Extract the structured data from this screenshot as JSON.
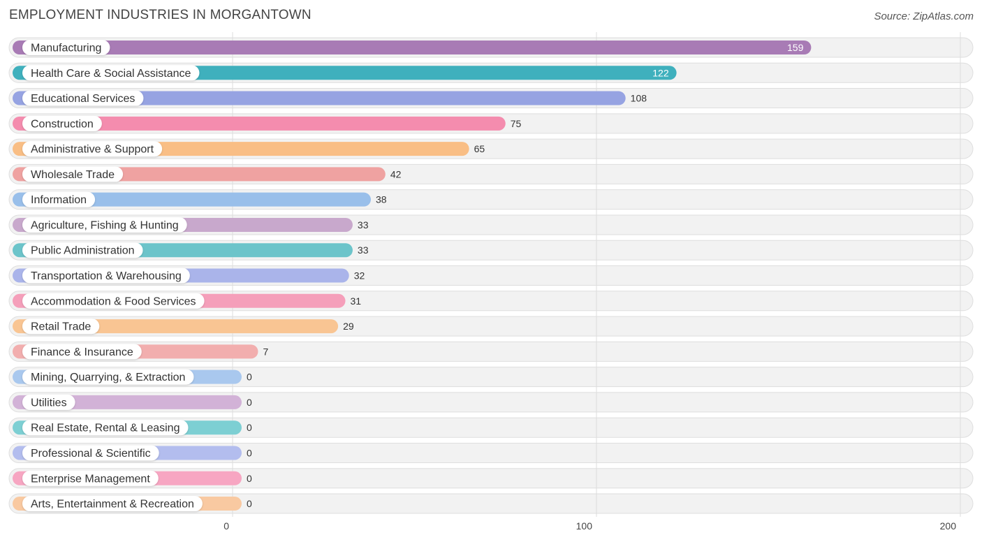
{
  "title": "EMPLOYMENT INDUSTRIES IN MORGANTOWN",
  "source": "Source: ZipAtlas.com",
  "chart_data": {
    "type": "bar",
    "orientation": "horizontal",
    "title": "EMPLOYMENT INDUSTRIES IN MORGANTOWN",
    "xlabel": "",
    "ylabel": "",
    "xlim": [
      0,
      200
    ],
    "xticks": [
      0,
      100,
      200
    ],
    "categories": [
      "Manufacturing",
      "Health Care & Social Assistance",
      "Educational Services",
      "Construction",
      "Administrative & Support",
      "Wholesale Trade",
      "Information",
      "Agriculture, Fishing & Hunting",
      "Public Administration",
      "Transportation & Warehousing",
      "Accommodation & Food Services",
      "Retail Trade",
      "Finance & Insurance",
      "Mining, Quarrying, & Extraction",
      "Utilities",
      "Real Estate, Rental & Leasing",
      "Professional & Scientific",
      "Enterprise Management",
      "Arts, Entertainment & Recreation"
    ],
    "values": [
      159,
      122,
      108,
      75,
      65,
      42,
      38,
      33,
      33,
      32,
      31,
      29,
      7,
      0,
      0,
      0,
      0,
      0,
      0
    ],
    "colors": [
      "#a87bb5",
      "#3fb0bd",
      "#96a3e2",
      "#f48cae",
      "#f9be85",
      "#efa2a1",
      "#99bfea",
      "#c8a8cc",
      "#6cc4ca",
      "#aab4ea",
      "#f59fba",
      "#f9c593",
      "#f2aeae",
      "#a9c8ee",
      "#d2b2d7",
      "#7dcfd3",
      "#b3bdee",
      "#f7a6c2",
      "#f9c9a1"
    ]
  }
}
